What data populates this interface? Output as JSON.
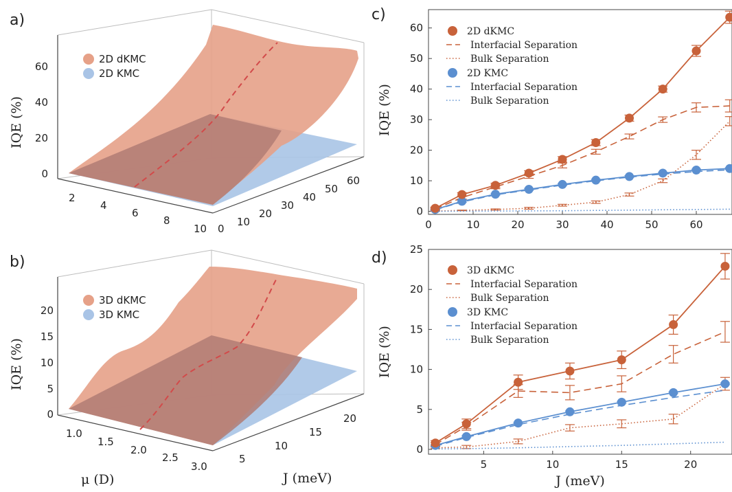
{
  "panels": {
    "a": {
      "letter": "a)",
      "z_label": "IQE (%)",
      "z_ticks": [
        "0",
        "20",
        "40",
        "60"
      ],
      "mu_ticks": [
        "2",
        "4",
        "6",
        "8",
        "10"
      ],
      "j_ticks": [
        "0",
        "10",
        "20",
        "30",
        "40",
        "50",
        "60"
      ],
      "legend": [
        "2D dKMC",
        "2D KMC"
      ]
    },
    "b": {
      "letter": "b)",
      "z_label": "IQE (%)",
      "z_ticks": [
        "0",
        "5",
        "10",
        "15",
        "20"
      ],
      "mu_ticks": [
        "1.0",
        "1.5",
        "2.0",
        "2.5",
        "3.0"
      ],
      "j_ticks": [
        "5",
        "10",
        "15",
        "20"
      ],
      "legend": [
        "3D dKMC",
        "3D KMC"
      ],
      "mu_label": "μ (D)",
      "j_label": "J (meV)"
    },
    "c": {
      "letter": "c)",
      "legend": [
        "2D dKMC",
        "Interfacial Separation",
        "Bulk Separation",
        "2D KMC",
        "Interfacial Separation",
        "Bulk Separation"
      ]
    },
    "d": {
      "letter": "d)",
      "legend": [
        "3D dKMC",
        "Interfacial Separation",
        "Bulk Separation",
        "3D KMC",
        "Interfacial Separation",
        "Bulk Separation"
      ]
    }
  },
  "colors": {
    "dkmc": "#c8623a",
    "kmc": "#5b8fd0",
    "surface_dkmc": "#e6a188",
    "surface_kmc": "#a9c4e6",
    "ridge": "#d24a4a"
  },
  "chart_data": [
    {
      "panel": "c",
      "type": "line",
      "xlabel": "",
      "ylabel": "IQE (%)",
      "xlim": [
        0,
        68
      ],
      "ylim": [
        -1,
        66
      ],
      "xticks": [
        0,
        10,
        20,
        30,
        40,
        50,
        60
      ],
      "yticks": [
        0,
        10,
        20,
        30,
        40,
        50,
        60
      ],
      "x": [
        1.5,
        7.5,
        15,
        22.5,
        30,
        37.5,
        45,
        52.5,
        60,
        67.5
      ],
      "series": [
        {
          "name": "2D dKMC",
          "style": "solid-marker",
          "color": "dkmc",
          "values": [
            1.0,
            5.5,
            8.5,
            12.5,
            17.0,
            22.5,
            30.5,
            40.0,
            52.5,
            63.5
          ],
          "err": [
            0.4,
            0.6,
            0.7,
            0.8,
            0.9,
            1.0,
            1.0,
            1.0,
            1.8,
            2.0
          ]
        },
        {
          "name": "Interfacial Separation",
          "style": "dashed",
          "color": "dkmc",
          "values": [
            0.8,
            4.5,
            8.0,
            11.5,
            15.0,
            19.5,
            24.5,
            30.0,
            34.0,
            34.5
          ],
          "err": [
            0.3,
            0.5,
            0.6,
            0.7,
            0.8,
            0.8,
            0.8,
            0.9,
            1.5,
            2.0
          ]
        },
        {
          "name": "Bulk Separation",
          "style": "dotted",
          "color": "dkmc",
          "values": [
            0.1,
            0.3,
            0.6,
            1.0,
            2.0,
            3.0,
            5.5,
            10.0,
            18.5,
            29.5
          ],
          "err": [
            0.1,
            0.1,
            0.2,
            0.3,
            0.3,
            0.4,
            0.5,
            0.6,
            1.5,
            1.5
          ]
        },
        {
          "name": "2D KMC",
          "style": "solid-marker",
          "color": "kmc",
          "values": [
            0.6,
            3.3,
            5.6,
            7.2,
            8.8,
            10.2,
            11.4,
            12.5,
            13.5,
            14.0
          ],
          "err": [
            0.2,
            0.3,
            0.3,
            0.3,
            0.3,
            0.3,
            0.3,
            0.3,
            0.3,
            0.3
          ]
        },
        {
          "name": "Interfacial Separation",
          "style": "dashed",
          "color": "kmc",
          "values": [
            0.5,
            3.1,
            5.4,
            7.0,
            8.6,
            10.0,
            11.2,
            12.2,
            13.0,
            13.6
          ]
        },
        {
          "name": "Bulk Separation",
          "style": "dotted",
          "color": "kmc",
          "values": [
            0.0,
            0.05,
            0.1,
            0.15,
            0.2,
            0.3,
            0.4,
            0.5,
            0.6,
            0.7
          ]
        }
      ]
    },
    {
      "panel": "d",
      "type": "line",
      "xlabel": "J (meV)",
      "ylabel": "IQE (%)",
      "xlim": [
        1,
        23
      ],
      "ylim": [
        -0.6,
        25
      ],
      "xticks": [
        5,
        10,
        15,
        20
      ],
      "yticks": [
        0,
        5,
        10,
        15,
        20,
        25
      ],
      "x": [
        1.5,
        3.75,
        7.5,
        11.25,
        15,
        18.75,
        22.5
      ],
      "series": [
        {
          "name": "3D dKMC",
          "style": "solid-marker",
          "color": "dkmc",
          "values": [
            0.8,
            3.2,
            8.4,
            9.8,
            11.2,
            15.6,
            22.9
          ],
          "err": [
            0.3,
            0.6,
            0.9,
            1.0,
            1.1,
            1.2,
            1.6
          ]
        },
        {
          "name": "Interfacial Separation",
          "style": "dashed",
          "color": "dkmc",
          "values": [
            0.6,
            2.9,
            7.3,
            7.1,
            8.2,
            11.9,
            14.7
          ],
          "err": [
            0.3,
            0.5,
            0.8,
            0.9,
            1.0,
            1.1,
            1.3
          ]
        },
        {
          "name": "Bulk Separation",
          "style": "dotted",
          "color": "dkmc",
          "values": [
            0.2,
            0.3,
            1.0,
            2.7,
            3.2,
            3.8,
            8.2
          ],
          "err": [
            0.1,
            0.2,
            0.3,
            0.4,
            0.5,
            0.6,
            0.8
          ]
        },
        {
          "name": "3D KMC",
          "style": "solid-marker",
          "color": "kmc",
          "values": [
            0.5,
            1.6,
            3.3,
            4.7,
            5.9,
            7.1,
            8.2
          ],
          "err": [
            0.1,
            0.1,
            0.1,
            0.1,
            0.1,
            0.1,
            0.1
          ]
        },
        {
          "name": "Interfacial Separation",
          "style": "dashed",
          "color": "kmc",
          "values": [
            0.4,
            1.5,
            3.1,
            4.4,
            5.5,
            6.5,
            7.4
          ]
        },
        {
          "name": "Bulk Separation",
          "style": "dotted",
          "color": "kmc",
          "values": [
            0.05,
            0.1,
            0.2,
            0.35,
            0.5,
            0.7,
            0.9
          ]
        }
      ]
    }
  ]
}
